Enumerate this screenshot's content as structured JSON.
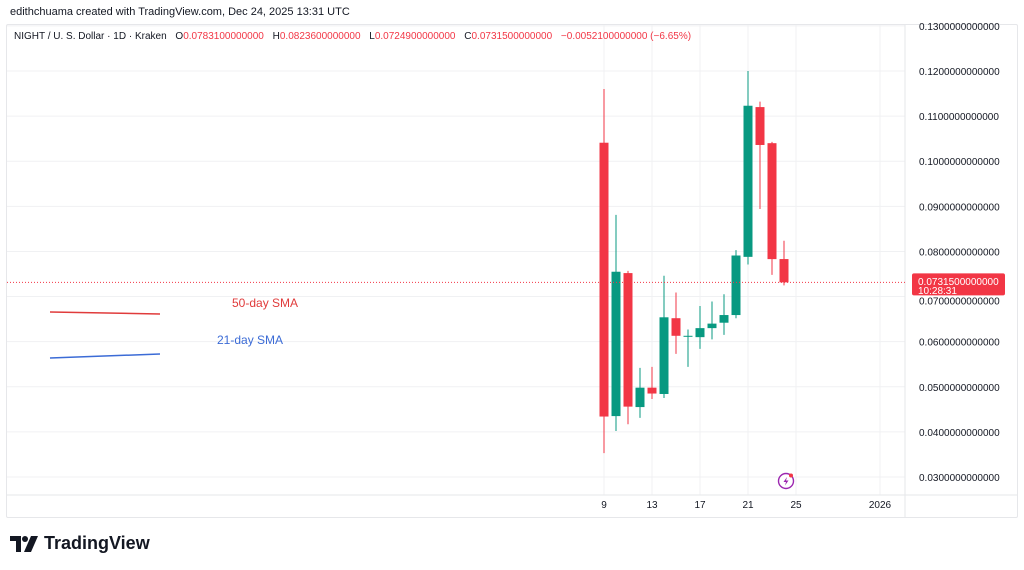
{
  "credit": "edithchuama created with TradingView.com, Dec 24, 2025 13:31 UTC",
  "legend": {
    "symbol": "NIGHT / U. S. Dollar · 1D · Kraken",
    "o_label": "O",
    "o": "0.0783100000000",
    "h_label": "H",
    "h": "0.0823600000000",
    "l_label": "L",
    "l": "0.0724900000000",
    "c_label": "C",
    "c": "0.0731500000000",
    "change": "−0.0052100000000 (−6.65%)"
  },
  "annotations": {
    "sma50_label": "50-day SMA",
    "sma21_label": "21-day SMA",
    "sma50_color": "#e03b3b",
    "sma21_color": "#3b6bd6"
  },
  "last_price": {
    "value": "0.0731500000000",
    "countdown": "10:28:31",
    "color": "#f23645"
  },
  "logo": {
    "text": "TradingView"
  },
  "event_icon": "lightning-bolt-icon",
  "chart_data": {
    "type": "candlestick",
    "title": "NIGHT / U. S. Dollar · 1D · Kraken",
    "up_color": "#089981",
    "down_color": "#f23645",
    "ylim": [
      0.025,
      0.135
    ],
    "y_ticks": [
      "0.0300000000000",
      "0.0400000000000",
      "0.0500000000000",
      "0.0600000000000",
      "0.0700000000000",
      "0.0800000000000",
      "0.0900000000000",
      "0.1000000000000",
      "0.1100000000000",
      "0.1200000000000",
      "0.1300000000000"
    ],
    "y_tick_values": [
      0.03,
      0.04,
      0.05,
      0.06,
      0.07,
      0.08,
      0.09,
      0.1,
      0.11,
      0.12,
      0.13
    ],
    "x_ticks": [
      {
        "label": "9",
        "day": 9
      },
      {
        "label": "13",
        "day": 13
      },
      {
        "label": "17",
        "day": 17
      },
      {
        "label": "21",
        "day": 21
      },
      {
        "label": "25",
        "day": 25
      },
      {
        "label": "2026",
        "day": 32
      }
    ],
    "x_range_days": [
      -41,
      34
    ],
    "grid": true,
    "candles": [
      {
        "day": 9,
        "o": 0.1041,
        "h": 0.116,
        "l": 0.0353,
        "c": 0.0434
      },
      {
        "day": 10,
        "o": 0.0435,
        "h": 0.0881,
        "l": 0.0402,
        "c": 0.0755
      },
      {
        "day": 11,
        "o": 0.0752,
        "h": 0.0757,
        "l": 0.0417,
        "c": 0.0456
      },
      {
        "day": 12,
        "o": 0.0455,
        "h": 0.0542,
        "l": 0.0431,
        "c": 0.0498
      },
      {
        "day": 13,
        "o": 0.0498,
        "h": 0.0544,
        "l": 0.0473,
        "c": 0.0485
      },
      {
        "day": 14,
        "o": 0.0484,
        "h": 0.0746,
        "l": 0.0475,
        "c": 0.0654
      },
      {
        "day": 15,
        "o": 0.0652,
        "h": 0.0709,
        "l": 0.0573,
        "c": 0.0613
      },
      {
        "day": 16,
        "o": 0.0612,
        "h": 0.0627,
        "l": 0.0544,
        "c": 0.0613
      },
      {
        "day": 17,
        "o": 0.061,
        "h": 0.0679,
        "l": 0.0584,
        "c": 0.063
      },
      {
        "day": 18,
        "o": 0.063,
        "h": 0.0689,
        "l": 0.0605,
        "c": 0.064
      },
      {
        "day": 19,
        "o": 0.0642,
        "h": 0.0705,
        "l": 0.0615,
        "c": 0.0659
      },
      {
        "day": 20,
        "o": 0.0659,
        "h": 0.0803,
        "l": 0.0652,
        "c": 0.0791
      },
      {
        "day": 21,
        "o": 0.0788,
        "h": 0.12,
        "l": 0.0771,
        "c": 0.1123
      },
      {
        "day": 22,
        "o": 0.112,
        "h": 0.1132,
        "l": 0.0894,
        "c": 0.1036
      },
      {
        "day": 23,
        "o": 0.104,
        "h": 0.1043,
        "l": 0.0748,
        "c": 0.0783
      },
      {
        "day": 24,
        "o": 0.07831,
        "h": 0.08236,
        "l": 0.07249,
        "c": 0.07315
      }
    ],
    "last_price": 0.07315
  }
}
